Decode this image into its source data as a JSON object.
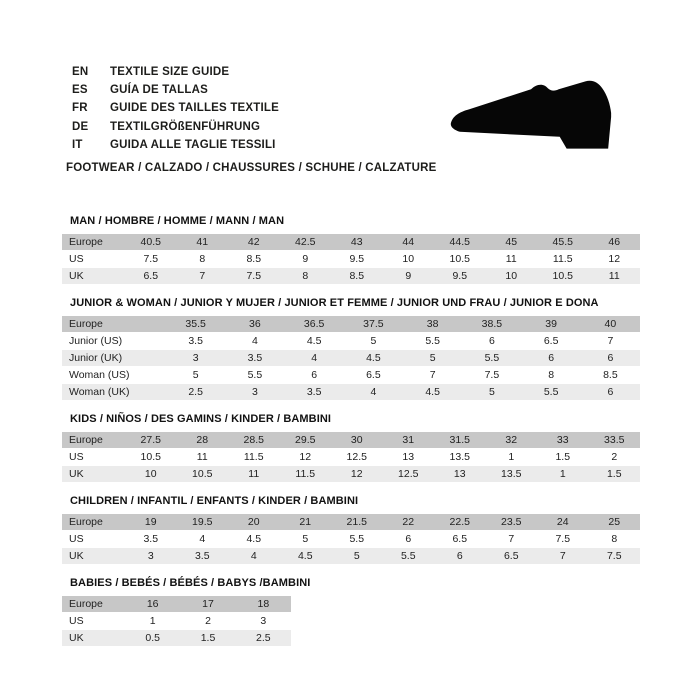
{
  "page": {
    "languages": [
      {
        "code": "EN",
        "label": "TEXTILE SIZE GUIDE"
      },
      {
        "code": "ES",
        "label": "GUÍA DE TALLAS"
      },
      {
        "code": "FR",
        "label": "GUIDE DES TAILLES TEXTILE"
      },
      {
        "code": "DE",
        "label": "TEXTILGRÖßENFÜHRUNG"
      },
      {
        "code": "IT",
        "label": "GUIDA ALLE TAGLIE TESSILI"
      }
    ],
    "category_line": "FOOTWEAR / CALZADO / CHAUSSURES / SCHUHE / CALZATURE",
    "shoe_icon": "shoe-silhouette-icon"
  },
  "colors": {
    "header_row_bg": "#c7c7c7",
    "alt_row_bg": "#ebebeb",
    "text": "#1d1d1b",
    "shoe_fill": "#060606"
  },
  "tables": [
    {
      "title": "MAN / HOMBRE / HOMME / MANN / MAN",
      "rows": [
        {
          "label": "Europe",
          "values": [
            "40.5",
            "41",
            "42",
            "42.5",
            "43",
            "44",
            "44.5",
            "45",
            "45.5",
            "46"
          ]
        },
        {
          "label": "US",
          "values": [
            "7.5",
            "8",
            "8.5",
            "9",
            "9.5",
            "10",
            "10.5",
            "11",
            "11.5",
            "12"
          ]
        },
        {
          "label": "UK",
          "values": [
            "6.5",
            "7",
            "7.5",
            "8",
            "8.5",
            "9",
            "9.5",
            "10",
            "10.5",
            "11"
          ]
        }
      ]
    },
    {
      "title": "JUNIOR & WOMAN / JUNIOR Y MUJER / JUNIOR ET FEMME / JUNIOR UND FRAU / JUNIOR E DONA",
      "rows": [
        {
          "label": "Europe",
          "values": [
            "35.5",
            "36",
            "36.5",
            "37.5",
            "38",
            "38.5",
            "39",
            "40"
          ]
        },
        {
          "label": "Junior (US)",
          "values": [
            "3.5",
            "4",
            "4.5",
            "5",
            "5.5",
            "6",
            "6.5",
            "7"
          ]
        },
        {
          "label": "Junior (UK)",
          "values": [
            "3",
            "3.5",
            "4",
            "4.5",
            "5",
            "5.5",
            "6",
            "6"
          ]
        },
        {
          "label": "Woman (US)",
          "values": [
            "5",
            "5.5",
            "6",
            "6.5",
            "7",
            "7.5",
            "8",
            "8.5"
          ]
        },
        {
          "label": "Woman (UK)",
          "values": [
            "2.5",
            "3",
            "3.5",
            "4",
            "4.5",
            "5",
            "5.5",
            "6"
          ]
        }
      ]
    },
    {
      "title": "KIDS / NIÑOS / DES GAMINS / KINDER / BAMBINI",
      "rows": [
        {
          "label": "Europe",
          "values": [
            "27.5",
            "28",
            "28.5",
            "29.5",
            "30",
            "31",
            "31.5",
            "32",
            "33",
            "33.5"
          ]
        },
        {
          "label": "US",
          "values": [
            "10.5",
            "11",
            "11.5",
            "12",
            "12.5",
            "13",
            "13.5",
            "1",
            "1.5",
            "2"
          ]
        },
        {
          "label": "UK",
          "values": [
            "10",
            "10.5",
            "11",
            "11.5",
            "12",
            "12.5",
            "13",
            "13.5",
            "1",
            "1.5"
          ]
        }
      ]
    },
    {
      "title": "CHILDREN / INFANTIL / ENFANTS / KINDER / BAMBINI",
      "rows": [
        {
          "label": "Europe",
          "values": [
            "19",
            "19.5",
            "20",
            "21",
            "21.5",
            "22",
            "22.5",
            "23.5",
            "24",
            "25"
          ]
        },
        {
          "label": "US",
          "values": [
            "3.5",
            "4",
            "4.5",
            "5",
            "5.5",
            "6",
            "6.5",
            "7",
            "7.5",
            "8"
          ]
        },
        {
          "label": "UK",
          "values": [
            "3",
            "3.5",
            "4",
            "4.5",
            "5",
            "5.5",
            "6",
            "6.5",
            "7",
            "7.5"
          ]
        }
      ]
    },
    {
      "title": "BABIES / BEBÉS / BÉBÉS / BABYS /BAMBINI",
      "rows": [
        {
          "label": "Europe",
          "values": [
            "16",
            "17",
            "18"
          ]
        },
        {
          "label": "US",
          "values": [
            "1",
            "2",
            "3"
          ]
        },
        {
          "label": "UK",
          "values": [
            "0.5",
            "1.5",
            "2.5"
          ]
        }
      ]
    }
  ]
}
